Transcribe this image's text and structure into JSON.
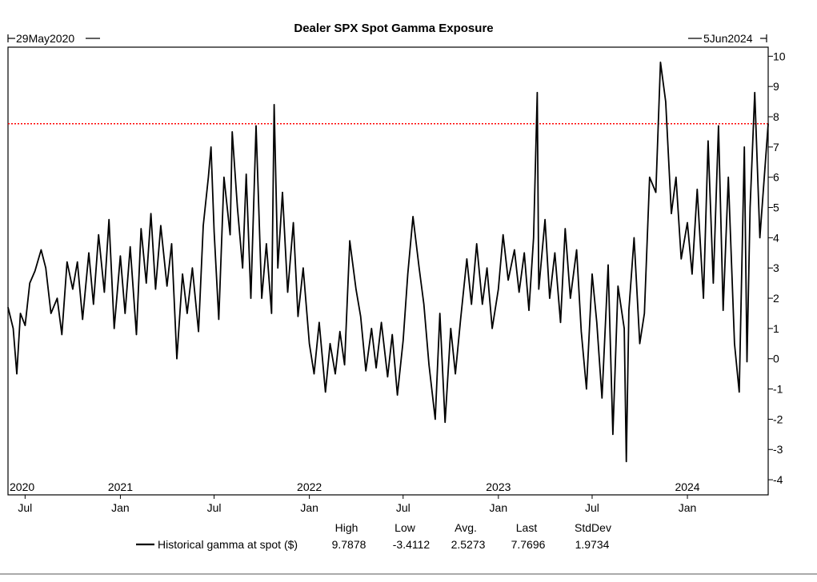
{
  "chart_data": {
    "type": "line",
    "title": "Dealer SPX Spot Gamma Exposure",
    "range_start_label": "29May2020",
    "range_end_label": "5Jun2024",
    "ylim": [
      -4.5,
      10.3
    ],
    "y_ticks": [
      10,
      9,
      8,
      7,
      6,
      5,
      4,
      3,
      2,
      1,
      0,
      -1,
      -2,
      -3,
      -4
    ],
    "x_start": "2020-05-29",
    "x_end": "2024-06-05",
    "month_ticks": [
      {
        "label": "Jul",
        "date": "2020-07-01"
      },
      {
        "label": "Jan",
        "date": "2021-01-01"
      },
      {
        "label": "Jul",
        "date": "2021-07-01"
      },
      {
        "label": "Jan",
        "date": "2022-01-01"
      },
      {
        "label": "Jul",
        "date": "2022-07-01"
      },
      {
        "label": "Jan",
        "date": "2023-01-01"
      },
      {
        "label": "Jul",
        "date": "2023-07-01"
      },
      {
        "label": "Jan",
        "date": "2024-01-01"
      }
    ],
    "year_labels": [
      {
        "label": "2020",
        "date": "2020-05-29"
      },
      {
        "label": "2021",
        "date": "2021-01-01"
      },
      {
        "label": "2022",
        "date": "2022-01-01"
      },
      {
        "label": "2023",
        "date": "2023-01-01"
      },
      {
        "label": "2024",
        "date": "2024-01-01"
      }
    ],
    "reference_line": {
      "value": 7.7696,
      "color": "#ff0000",
      "style": "dotted"
    },
    "series": [
      {
        "name": "Historical gamma at spot ($)",
        "color": "#000000",
        "points": [
          [
            "2020-05-29",
            1.7
          ],
          [
            "2020-06-08",
            1.0
          ],
          [
            "2020-06-15",
            -0.5
          ],
          [
            "2020-06-22",
            1.5
          ],
          [
            "2020-07-01",
            1.1
          ],
          [
            "2020-07-10",
            2.5
          ],
          [
            "2020-07-20",
            2.9
          ],
          [
            "2020-08-01",
            3.6
          ],
          [
            "2020-08-10",
            3.0
          ],
          [
            "2020-08-20",
            1.5
          ],
          [
            "2020-09-01",
            2.0
          ],
          [
            "2020-09-10",
            0.8
          ],
          [
            "2020-09-20",
            3.2
          ],
          [
            "2020-10-01",
            2.3
          ],
          [
            "2020-10-10",
            3.2
          ],
          [
            "2020-10-20",
            1.3
          ],
          [
            "2020-11-01",
            3.5
          ],
          [
            "2020-11-10",
            1.8
          ],
          [
            "2020-11-20",
            4.1
          ],
          [
            "2020-12-01",
            2.2
          ],
          [
            "2020-12-10",
            4.6
          ],
          [
            "2020-12-20",
            1.0
          ],
          [
            "2021-01-01",
            3.4
          ],
          [
            "2021-01-10",
            1.5
          ],
          [
            "2021-01-20",
            3.7
          ],
          [
            "2021-02-01",
            0.8
          ],
          [
            "2021-02-10",
            4.3
          ],
          [
            "2021-02-20",
            2.5
          ],
          [
            "2021-03-01",
            4.8
          ],
          [
            "2021-03-10",
            2.3
          ],
          [
            "2021-03-20",
            4.4
          ],
          [
            "2021-04-01",
            2.4
          ],
          [
            "2021-04-10",
            3.8
          ],
          [
            "2021-04-20",
            0.0
          ],
          [
            "2021-05-01",
            2.8
          ],
          [
            "2021-05-10",
            1.5
          ],
          [
            "2021-05-20",
            3.0
          ],
          [
            "2021-06-01",
            0.9
          ],
          [
            "2021-06-10",
            4.4
          ],
          [
            "2021-06-20",
            6.0
          ],
          [
            "2021-06-25",
            7.0
          ],
          [
            "2021-07-01",
            4.2
          ],
          [
            "2021-07-10",
            1.3
          ],
          [
            "2021-07-20",
            6.0
          ],
          [
            "2021-08-01",
            4.1
          ],
          [
            "2021-08-05",
            7.5
          ],
          [
            "2021-08-15",
            5.0
          ],
          [
            "2021-08-25",
            3.0
          ],
          [
            "2021-09-01",
            6.1
          ],
          [
            "2021-09-10",
            2.0
          ],
          [
            "2021-09-20",
            7.7
          ],
          [
            "2021-10-01",
            2.0
          ],
          [
            "2021-10-10",
            3.8
          ],
          [
            "2021-10-20",
            1.5
          ],
          [
            "2021-10-25",
            8.4
          ],
          [
            "2021-11-01",
            3.0
          ],
          [
            "2021-11-10",
            5.5
          ],
          [
            "2021-11-20",
            2.2
          ],
          [
            "2021-12-01",
            4.5
          ],
          [
            "2021-12-10",
            1.4
          ],
          [
            "2021-12-20",
            3.0
          ],
          [
            "2022-01-01",
            0.5
          ],
          [
            "2022-01-10",
            -0.5
          ],
          [
            "2022-01-20",
            1.2
          ],
          [
            "2022-02-01",
            -1.1
          ],
          [
            "2022-02-10",
            0.5
          ],
          [
            "2022-02-20",
            -0.5
          ],
          [
            "2022-03-01",
            0.9
          ],
          [
            "2022-03-10",
            -0.2
          ],
          [
            "2022-03-20",
            3.9
          ],
          [
            "2022-04-01",
            2.3
          ],
          [
            "2022-04-10",
            1.4
          ],
          [
            "2022-04-20",
            -0.4
          ],
          [
            "2022-05-01",
            1.0
          ],
          [
            "2022-05-10",
            -0.3
          ],
          [
            "2022-05-20",
            1.2
          ],
          [
            "2022-06-01",
            -0.6
          ],
          [
            "2022-06-10",
            0.8
          ],
          [
            "2022-06-20",
            -1.2
          ],
          [
            "2022-07-01",
            0.6
          ],
          [
            "2022-07-10",
            2.8
          ],
          [
            "2022-07-20",
            4.7
          ],
          [
            "2022-08-01",
            3.0
          ],
          [
            "2022-08-10",
            1.8
          ],
          [
            "2022-08-20",
            -0.2
          ],
          [
            "2022-09-01",
            -2.0
          ],
          [
            "2022-09-10",
            1.5
          ],
          [
            "2022-09-20",
            -2.1
          ],
          [
            "2022-10-01",
            1.0
          ],
          [
            "2022-10-10",
            -0.5
          ],
          [
            "2022-10-20",
            1.3
          ],
          [
            "2022-11-01",
            3.3
          ],
          [
            "2022-11-10",
            1.8
          ],
          [
            "2022-11-20",
            3.8
          ],
          [
            "2022-12-01",
            1.8
          ],
          [
            "2022-12-10",
            3.0
          ],
          [
            "2022-12-20",
            1.0
          ],
          [
            "2023-01-01",
            2.3
          ],
          [
            "2023-01-10",
            4.1
          ],
          [
            "2023-01-20",
            2.6
          ],
          [
            "2023-02-01",
            3.6
          ],
          [
            "2023-02-10",
            2.2
          ],
          [
            "2023-02-20",
            3.5
          ],
          [
            "2023-03-01",
            1.6
          ],
          [
            "2023-03-10",
            4.0
          ],
          [
            "2023-03-17",
            8.8
          ],
          [
            "2023-03-20",
            2.3
          ],
          [
            "2023-04-01",
            4.6
          ],
          [
            "2023-04-10",
            2.0
          ],
          [
            "2023-04-20",
            3.5
          ],
          [
            "2023-05-01",
            1.2
          ],
          [
            "2023-05-10",
            4.3
          ],
          [
            "2023-05-20",
            2.0
          ],
          [
            "2023-06-01",
            3.6
          ],
          [
            "2023-06-10",
            0.9
          ],
          [
            "2023-06-20",
            -1.0
          ],
          [
            "2023-07-01",
            2.8
          ],
          [
            "2023-07-10",
            1.2
          ],
          [
            "2023-07-20",
            -1.3
          ],
          [
            "2023-08-01",
            3.1
          ],
          [
            "2023-08-10",
            -2.5
          ],
          [
            "2023-08-20",
            2.4
          ],
          [
            "2023-09-01",
            1.0
          ],
          [
            "2023-09-05",
            -3.4
          ],
          [
            "2023-09-10",
            1.6
          ],
          [
            "2023-09-20",
            4.0
          ],
          [
            "2023-10-01",
            0.5
          ],
          [
            "2023-10-10",
            1.5
          ],
          [
            "2023-10-20",
            6.0
          ],
          [
            "2023-11-01",
            5.5
          ],
          [
            "2023-11-10",
            9.8
          ],
          [
            "2023-11-20",
            8.5
          ],
          [
            "2023-12-01",
            4.8
          ],
          [
            "2023-12-10",
            6.0
          ],
          [
            "2023-12-20",
            3.3
          ],
          [
            "2024-01-01",
            4.5
          ],
          [
            "2024-01-10",
            2.8
          ],
          [
            "2024-01-20",
            5.6
          ],
          [
            "2024-02-01",
            2.0
          ],
          [
            "2024-02-10",
            7.2
          ],
          [
            "2024-02-20",
            2.5
          ],
          [
            "2024-03-01",
            7.7
          ],
          [
            "2024-03-10",
            1.6
          ],
          [
            "2024-03-20",
            6.0
          ],
          [
            "2024-04-01",
            0.5
          ],
          [
            "2024-04-10",
            -1.1
          ],
          [
            "2024-04-20",
            7.0
          ],
          [
            "2024-04-25",
            -0.1
          ],
          [
            "2024-05-01",
            5.0
          ],
          [
            "2024-05-10",
            8.8
          ],
          [
            "2024-05-20",
            4.0
          ],
          [
            "2024-06-05",
            7.7696
          ]
        ]
      }
    ],
    "legend": {
      "headers": [
        "High",
        "Low",
        "Avg.",
        "Last",
        "StdDev"
      ],
      "entries": [
        {
          "name": "Historical gamma at spot ($)",
          "values": [
            "9.7878",
            "-3.4112",
            "2.5273",
            "7.7696",
            "1.9734"
          ]
        }
      ]
    }
  }
}
